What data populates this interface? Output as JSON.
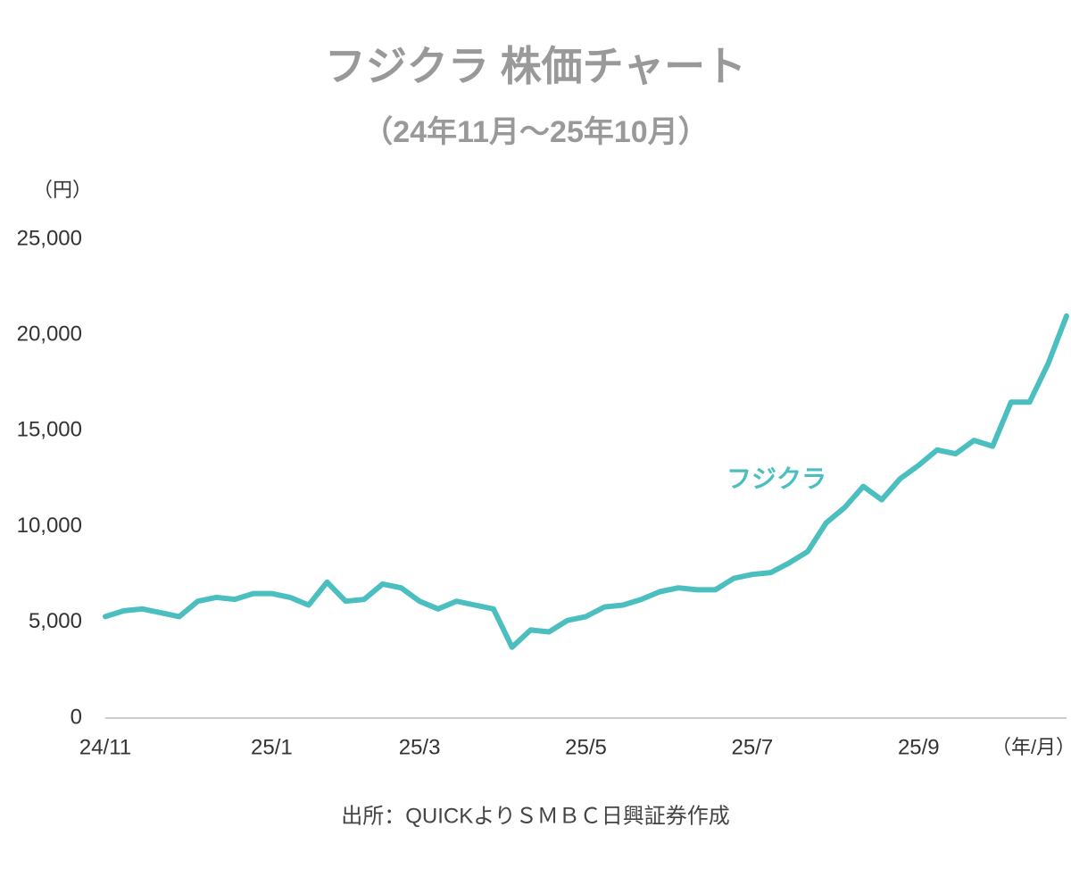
{
  "chart_data": {
    "type": "line",
    "title": "フジクラ 株価チャート",
    "subtitle": "（24年11月～25年10月）",
    "y_unit": "（円）",
    "x_unit": "（年/月）",
    "source": "出所：QUICKよりＳＭＢＣ日興証券作成",
    "categories": [
      "24/11",
      null,
      null,
      null,
      null,
      null,
      null,
      null,
      null,
      "25/1",
      null,
      null,
      null,
      null,
      null,
      null,
      null,
      "25/3",
      null,
      null,
      null,
      null,
      null,
      null,
      null,
      null,
      "25/5",
      null,
      null,
      null,
      null,
      null,
      null,
      null,
      null,
      "25/7",
      null,
      null,
      null,
      null,
      null,
      null,
      null,
      null,
      "25/9",
      null,
      null,
      null,
      null,
      null,
      null,
      null,
      null
    ],
    "series": [
      {
        "name": "フジクラ",
        "color": "#4bbfbf",
        "values": [
          5300,
          5600,
          5700,
          5500,
          5300,
          6100,
          6300,
          6200,
          6500,
          6500,
          6300,
          5900,
          7100,
          6100,
          6200,
          7000,
          6800,
          6100,
          5700,
          6100,
          5900,
          5700,
          3700,
          4600,
          4500,
          5100,
          5300,
          5800,
          5900,
          6200,
          6600,
          6800,
          6700,
          6700,
          7300,
          7500,
          7600,
          8100,
          8700,
          10200,
          11000,
          12100,
          11400,
          12500,
          13200,
          14000,
          13800,
          14500,
          14200,
          16500,
          16500,
          18500,
          21000
        ]
      }
    ],
    "ylim": [
      0,
      25000
    ],
    "yticks": [
      0,
      {
        "value": 5000,
        "label": "5,000"
      },
      {
        "value": 10000,
        "label": "10,000"
      },
      {
        "value": 15000,
        "label": "15,000"
      },
      {
        "value": 20000,
        "label": "20,000"
      },
      {
        "value": 25000,
        "label": "25,000"
      }
    ]
  }
}
